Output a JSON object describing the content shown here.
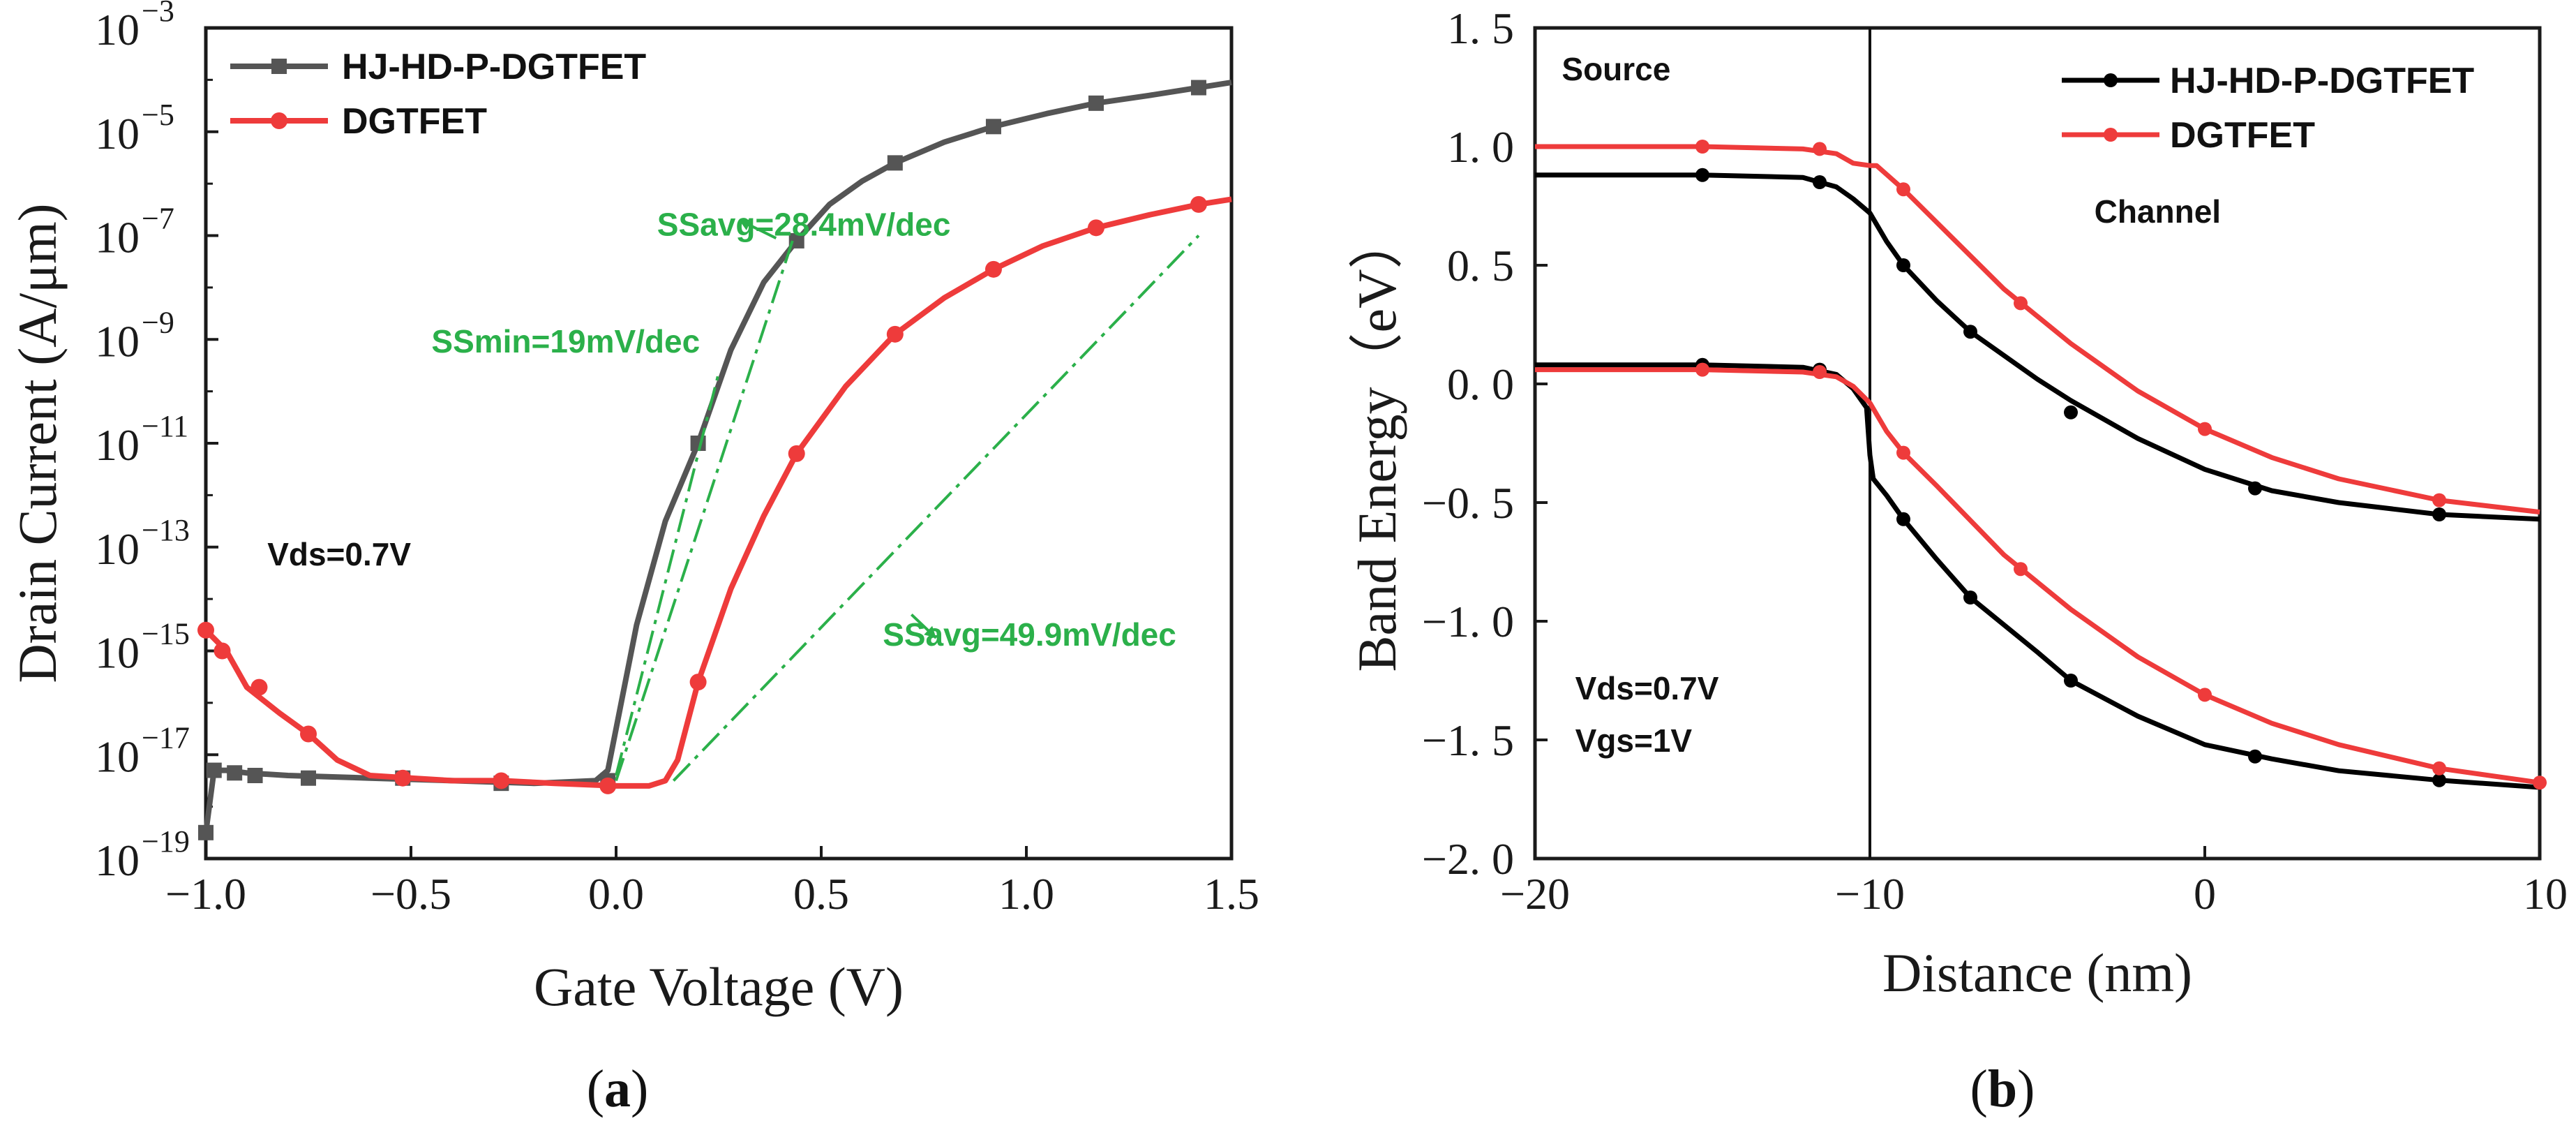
{
  "colors": {
    "black_series": "#555555",
    "black_series_b": "#000000",
    "red_series": "#ee3b3b",
    "annotation_green": "#2bb04a",
    "axis": "#1a1a1a"
  },
  "captions": {
    "a": "a",
    "b": "b"
  },
  "chart_data": [
    {
      "id": "a",
      "type": "line",
      "yscale": "log",
      "xlabel": "Gate Voltage (V)",
      "ylabel": "Drain Current (A/μm)",
      "xlim": [
        -1.0,
        1.5
      ],
      "ylim_exp": [
        -19,
        -3
      ],
      "x_ticks": [
        -1.0,
        -0.5,
        0.0,
        0.5,
        1.0,
        1.5
      ],
      "x_tick_labels": [
        "−1.0",
        "−0.5",
        "0.0",
        "0.5",
        "1.0",
        "1.5"
      ],
      "y_tick_exps": [
        -19,
        -17,
        -15,
        -13,
        -11,
        -9,
        -7,
        -5,
        -3
      ],
      "y_tick_base": "10",
      "y_tick_exp_labels": [
        "−19",
        "−17",
        "−15",
        "−13",
        "−11",
        "−9",
        "−7",
        "−5",
        "−3"
      ],
      "legend": {
        "position": "top-left",
        "entries": [
          "HJ-HD-P-DGTFET",
          "DGTFET"
        ]
      },
      "series": [
        {
          "name": "HJ-HD-P-DGTFET",
          "color": "#555555",
          "marker": "square",
          "x": [
            -1.0,
            -0.98,
            -0.95,
            -0.9,
            -0.8,
            -0.6,
            -0.4,
            -0.2,
            -0.05,
            -0.02,
            0.05,
            0.12,
            0.2,
            0.28,
            0.36,
            0.44,
            0.52,
            0.6,
            0.68,
            0.8,
            0.92,
            1.05,
            1.17,
            1.3,
            1.42,
            1.5
          ],
          "log10_y": [
            -18.5,
            -17.3,
            -17.3,
            -17.35,
            -17.4,
            -17.45,
            -17.5,
            -17.55,
            -17.5,
            -17.3,
            -14.5,
            -12.5,
            -11.0,
            -9.2,
            -7.9,
            -7.1,
            -6.4,
            -5.95,
            -5.6,
            -5.2,
            -4.9,
            -4.65,
            -4.45,
            -4.3,
            -4.15,
            -4.05
          ],
          "marker_x": [
            -1.0,
            -0.98,
            -0.93,
            -0.88,
            -0.75,
            -0.52,
            -0.28,
            -0.02,
            0.2,
            0.44,
            0.68,
            0.92,
            1.17,
            1.42
          ],
          "marker_log10_y": [
            -18.5,
            -17.3,
            -17.35,
            -17.4,
            -17.45,
            -17.45,
            -17.55,
            -17.5,
            -11.0,
            -7.1,
            -5.6,
            -4.9,
            -4.45,
            -4.15
          ]
        },
        {
          "name": "DGTFET",
          "color": "#ee3b3b",
          "marker": "circle",
          "x": [
            -1.0,
            -0.95,
            -0.9,
            -0.82,
            -0.75,
            -0.68,
            -0.6,
            -0.5,
            -0.4,
            -0.28,
            -0.15,
            0.0,
            0.08,
            0.12,
            0.15,
            0.2,
            0.28,
            0.36,
            0.44,
            0.56,
            0.68,
            0.8,
            0.92,
            1.04,
            1.17,
            1.3,
            1.42,
            1.5
          ],
          "log10_y": [
            -14.6,
            -15.0,
            -15.7,
            -16.2,
            -16.6,
            -17.1,
            -17.4,
            -17.45,
            -17.5,
            -17.5,
            -17.55,
            -17.6,
            -17.6,
            -17.5,
            -17.1,
            -15.6,
            -13.8,
            -12.4,
            -11.2,
            -9.9,
            -8.9,
            -8.2,
            -7.65,
            -7.2,
            -6.85,
            -6.6,
            -6.4,
            -6.3
          ],
          "marker_x": [
            -1.0,
            -0.96,
            -0.87,
            -0.75,
            -0.52,
            -0.28,
            -0.02,
            0.2,
            0.44,
            0.68,
            0.92,
            1.17,
            1.42
          ],
          "marker_log10_y": [
            -14.6,
            -15.0,
            -15.7,
            -16.6,
            -17.45,
            -17.5,
            -17.6,
            -15.6,
            -11.2,
            -8.9,
            -7.65,
            -6.85,
            -6.4
          ]
        }
      ],
      "annotations": [
        {
          "text": "SSavg=28.4mV/dec",
          "color": "#2bb04a",
          "x": 0.1,
          "log10_y": -7.0
        },
        {
          "text": "SSmin=19mV/dec",
          "color": "#2bb04a",
          "x": -0.45,
          "log10_y": -9.25
        },
        {
          "text": "SSavg=49.9mV/dec",
          "color": "#2bb04a",
          "x": 0.65,
          "log10_y": -14.9
        },
        {
          "text": "Vds=0.7V",
          "color": "#111111",
          "x": -0.85,
          "log10_y": -13.35
        }
      ]
    },
    {
      "id": "b",
      "type": "line",
      "xlabel": "Distance (nm)",
      "ylabel": "Band Energy（eV）",
      "xlim": [
        -20,
        10
      ],
      "ylim": [
        -2.0,
        1.5
      ],
      "x_ticks": [
        -20,
        -10,
        0,
        10
      ],
      "x_tick_labels": [
        "−20",
        "−10",
        "0",
        "10"
      ],
      "y_ticks": [
        1.5,
        1.0,
        0.5,
        0.0,
        -0.5,
        -1.0,
        -1.5,
        -2.0
      ],
      "y_tick_labels": [
        "1. 5",
        "1. 0",
        "0. 5",
        "0. 0",
        "−0. 5",
        "−1. 0",
        "−1. 5",
        "−2. 0"
      ],
      "vertical_line_x": -10,
      "legend": {
        "position": "top-right",
        "entries": [
          "HJ-HD-P-DGTFET",
          "DGTFET"
        ]
      },
      "series": [
        {
          "name": "HJ-HD-P-DGTFET",
          "color": "#000000",
          "band": "conduction",
          "x": [
            -20,
            -18,
            -15,
            -12,
            -11,
            -10.5,
            -10,
            -9.5,
            -9,
            -8,
            -7,
            -5,
            -4,
            -2,
            0,
            2,
            4,
            7,
            10
          ],
          "y": [
            0.88,
            0.88,
            0.88,
            0.87,
            0.83,
            0.78,
            0.72,
            0.6,
            0.5,
            0.35,
            0.22,
            0.02,
            -0.07,
            -0.23,
            -0.36,
            -0.45,
            -0.5,
            -0.55,
            -0.57
          ],
          "marker_x": [
            -15,
            -11.5,
            -9,
            -7,
            -4,
            1.5,
            7
          ],
          "marker_y": [
            0.88,
            0.85,
            0.5,
            0.22,
            -0.12,
            -0.44,
            -0.55
          ]
        },
        {
          "name": "DGTFET",
          "color": "#ee3b3b",
          "band": "conduction",
          "x": [
            -20,
            -18,
            -15,
            -12,
            -11,
            -10.5,
            -10,
            -9.8,
            -9,
            -8,
            -6,
            -4,
            -2,
            0,
            2,
            4,
            7,
            10
          ],
          "y": [
            1.0,
            1.0,
            1.0,
            0.99,
            0.97,
            0.93,
            0.92,
            0.92,
            0.82,
            0.68,
            0.4,
            0.17,
            -0.03,
            -0.19,
            -0.31,
            -0.4,
            -0.49,
            -0.54
          ],
          "marker_x": [
            -15,
            -11.5,
            -9,
            -5.5,
            0,
            7
          ],
          "marker_y": [
            1.0,
            0.99,
            0.82,
            0.34,
            -0.19,
            -0.49
          ]
        },
        {
          "name": "HJ-HD-P-DGTFET",
          "color": "#000000",
          "band": "valence",
          "x": [
            -20,
            -18,
            -15,
            -12,
            -11,
            -10.5,
            -10.1,
            -10,
            -9.9,
            -9.5,
            -9,
            -8,
            -7,
            -5,
            -4,
            -2,
            0,
            2,
            4,
            7,
            10
          ],
          "y": [
            0.08,
            0.08,
            0.08,
            0.07,
            0.04,
            -0.02,
            -0.1,
            -0.3,
            -0.4,
            -0.47,
            -0.57,
            -0.74,
            -0.9,
            -1.13,
            -1.25,
            -1.4,
            -1.52,
            -1.58,
            -1.63,
            -1.67,
            -1.7
          ],
          "marker_x": [
            -15,
            -11.5,
            -9,
            -7,
            -4,
            1.5,
            7
          ],
          "marker_y": [
            0.08,
            0.06,
            -0.57,
            -0.9,
            -1.25,
            -1.57,
            -1.67
          ]
        },
        {
          "name": "DGTFET",
          "color": "#ee3b3b",
          "band": "valence",
          "x": [
            -20,
            -18,
            -15,
            -12,
            -11,
            -10.5,
            -10,
            -9.5,
            -9,
            -8,
            -6,
            -4,
            -2,
            0,
            2,
            4,
            7,
            10
          ],
          "y": [
            0.06,
            0.06,
            0.06,
            0.05,
            0.03,
            -0.01,
            -0.08,
            -0.2,
            -0.29,
            -0.43,
            -0.72,
            -0.95,
            -1.15,
            -1.31,
            -1.43,
            -1.52,
            -1.62,
            -1.68
          ],
          "marker_x": [
            -15,
            -11.5,
            -9,
            -5.5,
            0,
            7,
            10
          ],
          "marker_y": [
            0.06,
            0.05,
            -0.29,
            -0.78,
            -1.31,
            -1.62,
            -1.68
          ]
        }
      ],
      "annotations": [
        {
          "text": "Source",
          "x": -19.2,
          "y": 1.28
        },
        {
          "text": "Channel",
          "x": -3.3,
          "y": 0.68
        },
        {
          "text": "Vds=0.7V",
          "x": -18.8,
          "y": -1.33
        },
        {
          "text": "Vgs=1V",
          "x": -18.8,
          "y": -1.55
        }
      ]
    }
  ]
}
